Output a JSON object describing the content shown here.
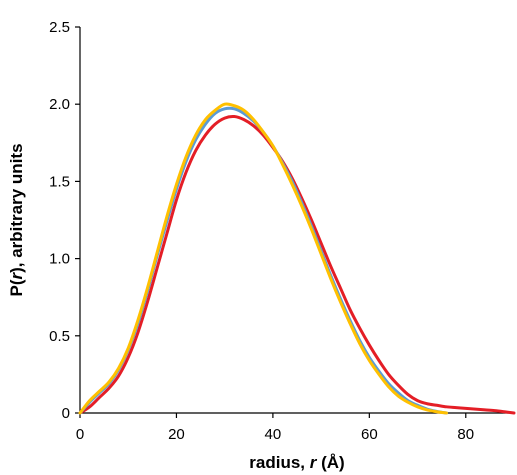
{
  "chart_data": {
    "type": "line",
    "title": "",
    "xlabel": "radius, r (Å)",
    "xlabel_parts": {
      "prefix": "radius, ",
      "italic": "r",
      "suffix": " (Å)"
    },
    "ylabel": "P(r), arbitrary units",
    "ylabel_parts": {
      "prefix": "P(",
      "italic": "r",
      "suffix": "), arbitrary units"
    },
    "xlim": [
      0,
      90
    ],
    "ylim": [
      0,
      2.5
    ],
    "xticks": [
      0,
      20,
      40,
      60,
      80
    ],
    "xtick_labels": [
      "0",
      "20",
      "40",
      "60",
      "80"
    ],
    "yticks": [
      0,
      0.5,
      1.0,
      1.5,
      2.0,
      2.5
    ],
    "ytick_labels": [
      "0",
      "0.5",
      "1.0",
      "1.5",
      "2.0",
      "2.5"
    ],
    "grid": false,
    "legend": "none",
    "series": [
      {
        "color": "#e41e26",
        "points": [
          [
            0,
            0
          ],
          [
            2,
            0.04
          ],
          [
            4,
            0.1
          ],
          [
            6,
            0.16
          ],
          [
            8,
            0.24
          ],
          [
            10,
            0.36
          ],
          [
            12,
            0.52
          ],
          [
            14,
            0.72
          ],
          [
            16,
            0.94
          ],
          [
            18,
            1.16
          ],
          [
            20,
            1.38
          ],
          [
            22,
            1.56
          ],
          [
            24,
            1.7
          ],
          [
            26,
            1.8
          ],
          [
            28,
            1.87
          ],
          [
            30,
            1.91
          ],
          [
            32,
            1.92
          ],
          [
            34,
            1.9
          ],
          [
            36,
            1.86
          ],
          [
            38,
            1.8
          ],
          [
            40,
            1.72
          ],
          [
            42,
            1.63
          ],
          [
            44,
            1.52
          ],
          [
            46,
            1.39
          ],
          [
            48,
            1.25
          ],
          [
            50,
            1.1
          ],
          [
            52,
            0.95
          ],
          [
            54,
            0.81
          ],
          [
            56,
            0.67
          ],
          [
            58,
            0.55
          ],
          [
            60,
            0.44
          ],
          [
            62,
            0.34
          ],
          [
            64,
            0.25
          ],
          [
            66,
            0.18
          ],
          [
            68,
            0.12
          ],
          [
            70,
            0.08
          ],
          [
            72,
            0.06
          ],
          [
            74,
            0.05
          ],
          [
            76,
            0.04
          ],
          [
            78,
            0.035
          ],
          [
            80,
            0.03
          ],
          [
            82,
            0.025
          ],
          [
            84,
            0.02
          ],
          [
            86,
            0.015
          ],
          [
            88,
            0.008
          ],
          [
            90,
            0
          ]
        ]
      },
      {
        "color": "#5b9bd5",
        "points": [
          [
            0,
            0
          ],
          [
            2,
            0.07
          ],
          [
            4,
            0.13
          ],
          [
            6,
            0.19
          ],
          [
            8,
            0.28
          ],
          [
            10,
            0.41
          ],
          [
            12,
            0.58
          ],
          [
            14,
            0.79
          ],
          [
            16,
            1.02
          ],
          [
            18,
            1.24
          ],
          [
            20,
            1.45
          ],
          [
            22,
            1.63
          ],
          [
            24,
            1.77
          ],
          [
            26,
            1.87
          ],
          [
            28,
            1.94
          ],
          [
            30,
            1.97
          ],
          [
            32,
            1.97
          ],
          [
            34,
            1.94
          ],
          [
            36,
            1.89
          ],
          [
            38,
            1.82
          ],
          [
            40,
            1.73
          ],
          [
            42,
            1.62
          ],
          [
            44,
            1.5
          ],
          [
            46,
            1.36
          ],
          [
            48,
            1.21
          ],
          [
            50,
            1.05
          ],
          [
            52,
            0.89
          ],
          [
            54,
            0.74
          ],
          [
            56,
            0.6
          ],
          [
            58,
            0.47
          ],
          [
            60,
            0.36
          ],
          [
            62,
            0.27
          ],
          [
            64,
            0.19
          ],
          [
            66,
            0.13
          ],
          [
            68,
            0.08
          ],
          [
            70,
            0.05
          ],
          [
            72,
            0.025
          ],
          [
            74,
            0.01
          ],
          [
            76,
            0
          ]
        ]
      },
      {
        "color": "#ffc000",
        "points": [
          [
            0,
            0
          ],
          [
            2,
            0.08
          ],
          [
            4,
            0.14
          ],
          [
            6,
            0.2
          ],
          [
            8,
            0.29
          ],
          [
            10,
            0.42
          ],
          [
            12,
            0.6
          ],
          [
            14,
            0.81
          ],
          [
            16,
            1.04
          ],
          [
            18,
            1.27
          ],
          [
            20,
            1.48
          ],
          [
            22,
            1.66
          ],
          [
            24,
            1.8
          ],
          [
            26,
            1.9
          ],
          [
            28,
            1.96
          ],
          [
            30,
            2.0
          ],
          [
            32,
            1.99
          ],
          [
            34,
            1.96
          ],
          [
            36,
            1.9
          ],
          [
            38,
            1.82
          ],
          [
            40,
            1.73
          ],
          [
            42,
            1.61
          ],
          [
            44,
            1.48
          ],
          [
            46,
            1.34
          ],
          [
            48,
            1.19
          ],
          [
            50,
            1.03
          ],
          [
            52,
            0.87
          ],
          [
            54,
            0.72
          ],
          [
            56,
            0.58
          ],
          [
            58,
            0.45
          ],
          [
            60,
            0.34
          ],
          [
            62,
            0.25
          ],
          [
            64,
            0.17
          ],
          [
            66,
            0.11
          ],
          [
            68,
            0.07
          ],
          [
            70,
            0.04
          ],
          [
            72,
            0.02
          ],
          [
            74,
            0.008
          ],
          [
            76,
            0
          ]
        ]
      }
    ]
  }
}
